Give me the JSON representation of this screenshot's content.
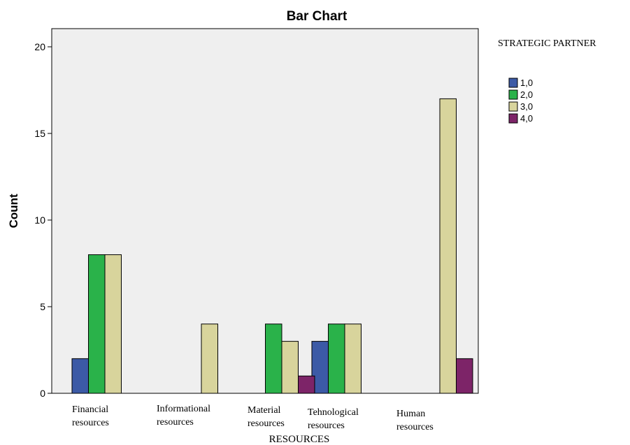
{
  "chart_data": {
    "type": "bar",
    "title": "Bar Chart",
    "xlabel": "RESOURCES",
    "ylabel": "Count",
    "ylim": [
      0,
      21
    ],
    "yticks": [
      "0",
      "5",
      "10",
      "15",
      "20"
    ],
    "grid": false,
    "legend_title": "STRATEGIC PARTNER",
    "legend_position": "right",
    "categories": [
      [
        "Financial",
        "resources"
      ],
      [
        "Informational",
        "resources"
      ],
      [
        "Material",
        "resources"
      ],
      [
        "Tehnological",
        "resources"
      ],
      [
        "Human",
        "resources"
      ]
    ],
    "series": [
      {
        "name": "1,0",
        "color": "#3c5aa6",
        "values": [
          2,
          null,
          null,
          3,
          null
        ]
      },
      {
        "name": "2,0",
        "color": "#2ab24a",
        "values": [
          8,
          null,
          4,
          4,
          null
        ]
      },
      {
        "name": "3,0",
        "color": "#d8d49c",
        "values": [
          8,
          4,
          3,
          4,
          17
        ]
      },
      {
        "name": "4,0",
        "color": "#7d2468",
        "values": [
          null,
          null,
          1,
          null,
          2
        ]
      }
    ],
    "plot_background": "#efefef"
  }
}
